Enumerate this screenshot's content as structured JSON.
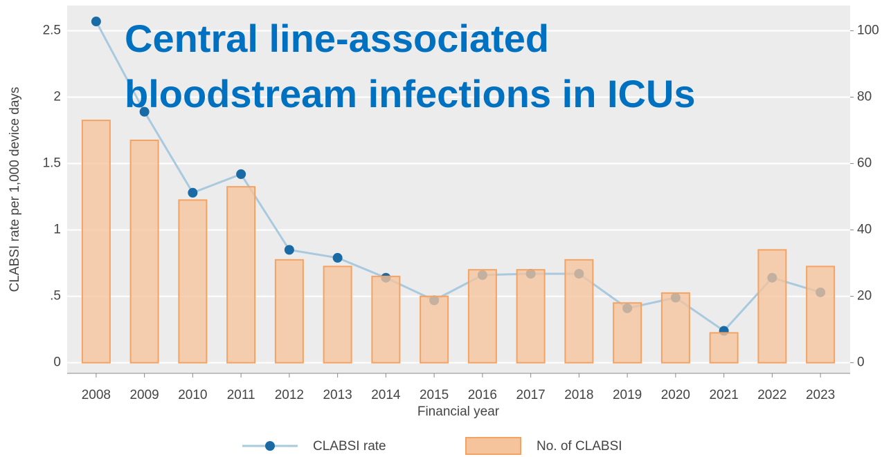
{
  "chart_data": {
    "type": "bar-line",
    "title": [
      "Central line-associated",
      "bloodstream infections in ICUs"
    ],
    "x_label": "Financial year",
    "y_label": "CLABSI rate per 1,000 device days",
    "categories": [
      "2008",
      "2009",
      "2010",
      "2011",
      "2012",
      "2013",
      "2014",
      "2015",
      "2016",
      "2017",
      "2018",
      "2019",
      "2020",
      "2021",
      "2022",
      "2023"
    ],
    "series": [
      {
        "name": "No. of CLABSI",
        "type": "bar",
        "axis": "y2",
        "color": "#f5c49c",
        "edge_color": "#f4a262",
        "values": [
          73,
          67,
          49,
          53,
          31,
          29,
          26,
          20,
          28,
          28,
          31,
          18,
          21,
          9,
          34,
          29
        ]
      },
      {
        "name": "CLABSI rate",
        "type": "line",
        "axis": "y",
        "color": "#1a6aa6",
        "line_color": "#a9c9de",
        "values": [
          2.57,
          1.89,
          1.28,
          1.42,
          0.85,
          0.79,
          0.64,
          0.47,
          0.66,
          0.67,
          0.67,
          0.41,
          0.49,
          0.24,
          0.64,
          0.53
        ]
      }
    ],
    "ylim": [
      -0.08,
      2.69
    ],
    "yticks": [
      0,
      {
        "value": 0.5,
        "label": ".5"
      },
      1,
      1.5,
      2,
      2.5
    ],
    "y2lim": [
      -3.2,
      107.6
    ],
    "y2ticks": [
      0,
      20,
      40,
      60,
      80,
      100
    ],
    "grid": true
  }
}
